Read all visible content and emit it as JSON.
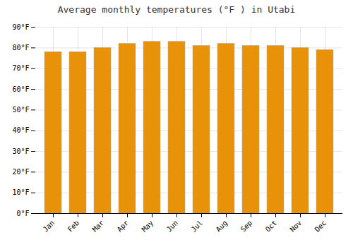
{
  "chart_data": {
    "type": "bar",
    "title": "Average monthly temperatures (°F ) in Utabi",
    "categories": [
      "Jan",
      "Feb",
      "Mar",
      "Apr",
      "May",
      "Jun",
      "Jul",
      "Aug",
      "Sep",
      "Oct",
      "Nov",
      "Dec"
    ],
    "values": [
      78,
      78,
      80,
      82,
      83,
      83,
      81,
      82,
      81,
      81,
      80,
      79
    ],
    "color": "#E8920A",
    "ylim": [
      0,
      90
    ],
    "yticks": [
      {
        "value": 0,
        "label": "0°F"
      },
      {
        "value": 10,
        "label": "10°F"
      },
      {
        "value": 20,
        "label": "20°F"
      },
      {
        "value": 30,
        "label": "30°F"
      },
      {
        "value": 40,
        "label": "40°F"
      },
      {
        "value": 50,
        "label": "50°F"
      },
      {
        "value": 60,
        "label": "60°F"
      },
      {
        "value": 70,
        "label": "70°F"
      },
      {
        "value": 80,
        "label": "80°F"
      },
      {
        "value": 90,
        "label": "90°F"
      }
    ],
    "grid": true
  }
}
